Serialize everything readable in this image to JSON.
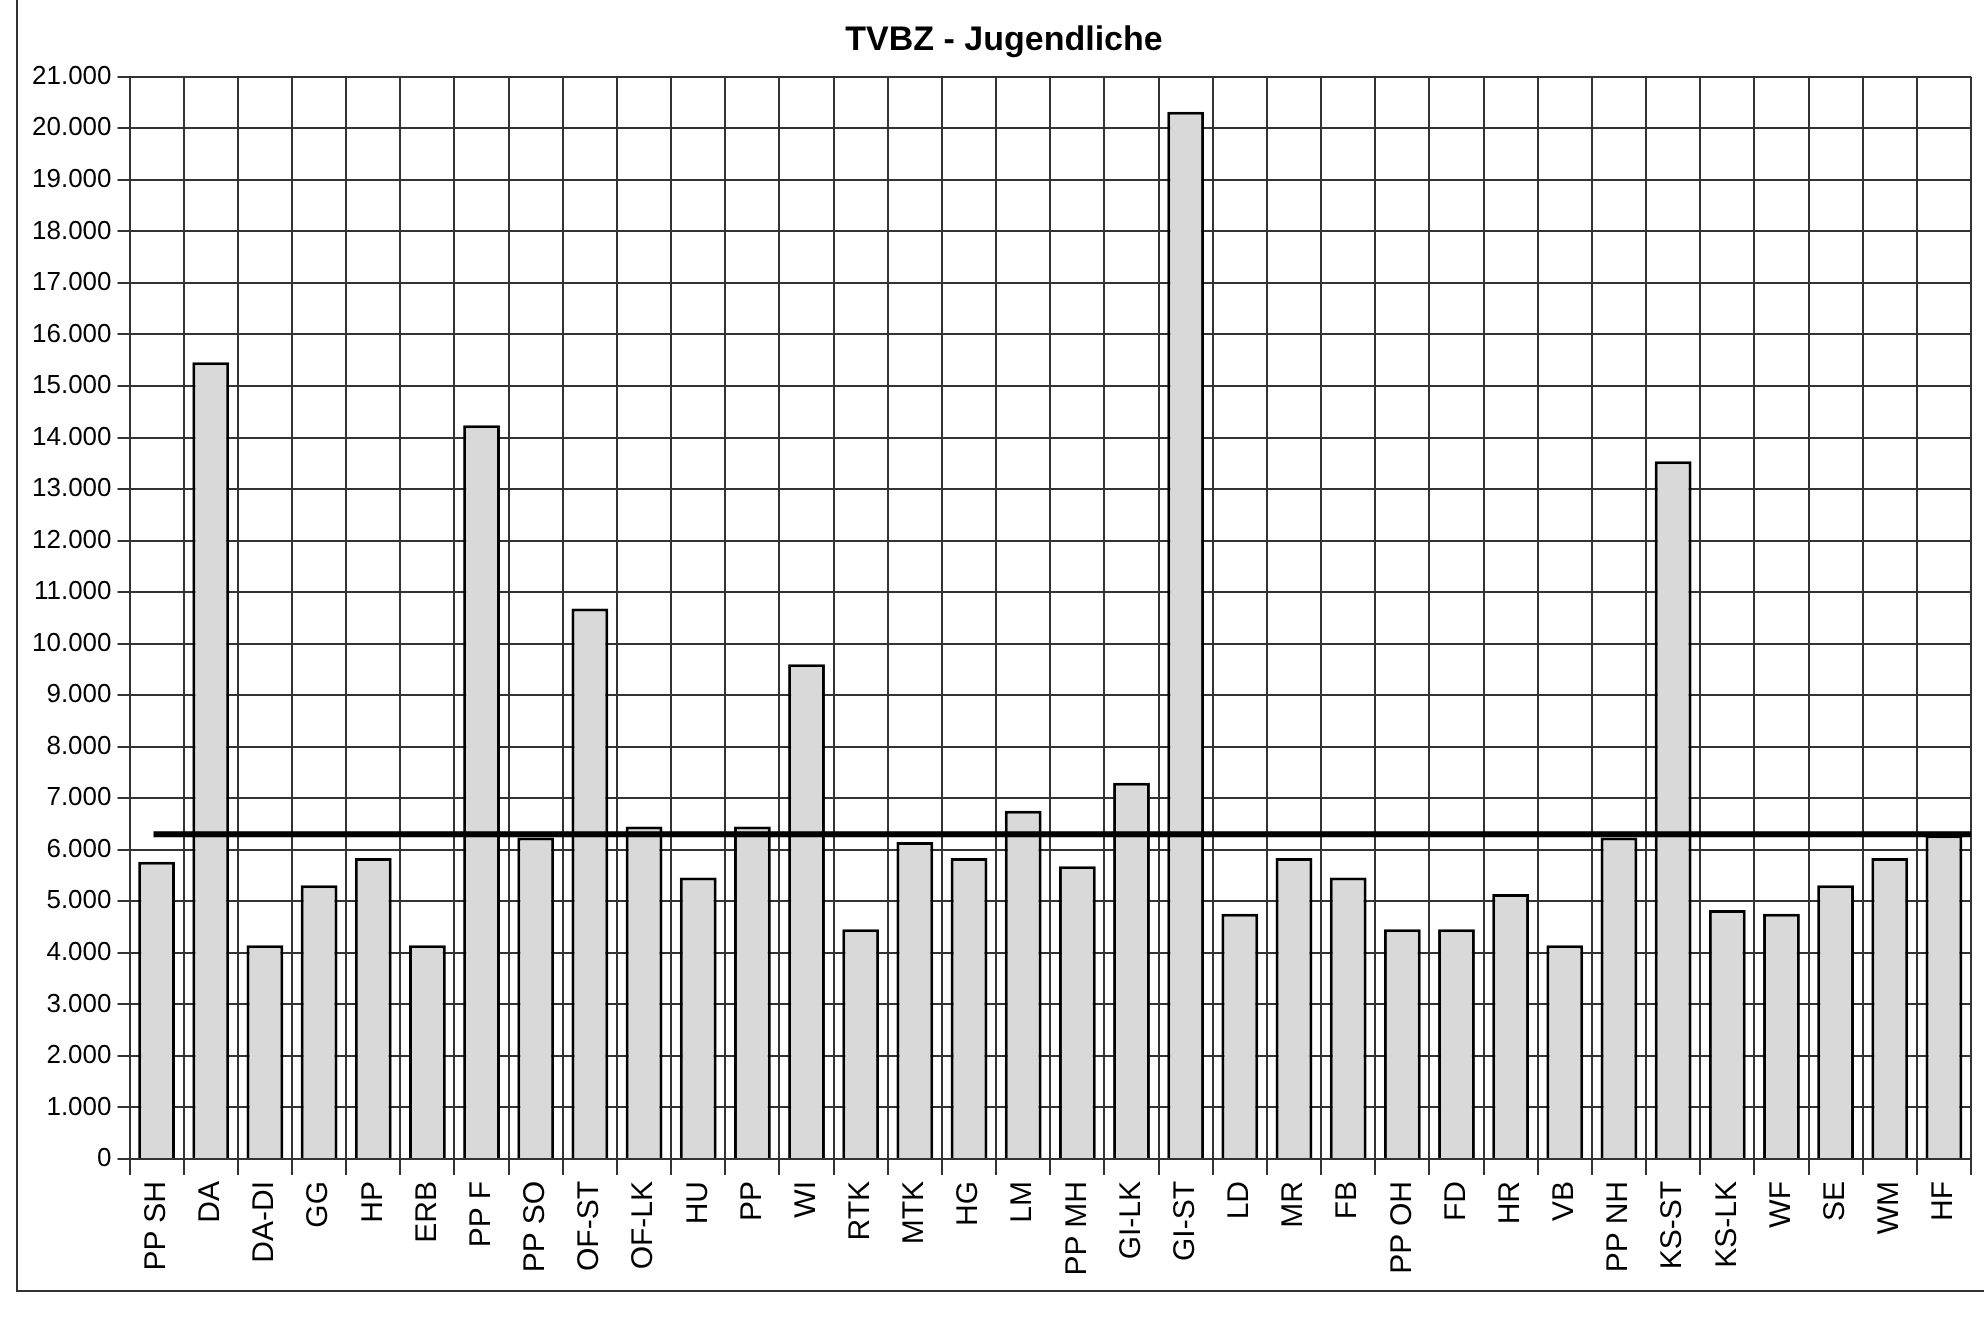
{
  "chart_data": {
    "type": "bar",
    "title": "TVBZ - Jugendliche",
    "categories": [
      "PP SH",
      "DA",
      "DA-DI",
      "GG",
      "HP",
      "ERB",
      "PP F",
      "PP SO",
      "OF-ST",
      "OF-LK",
      "HU",
      "PP",
      "WI",
      "RTK",
      "MTK",
      "HG",
      "LM",
      "PP MH",
      "GI-LK",
      "GI-ST",
      "LD",
      "MR",
      "FB",
      "PP OH",
      "FD",
      "HR",
      "VB",
      "PP NH",
      "KS-ST",
      "KS-LK",
      "WF",
      "SE",
      "WM",
      "HF"
    ],
    "values": [
      5770,
      15460,
      4150,
      5310,
      5840,
      4150,
      14240,
      6240,
      10680,
      6450,
      5460,
      6450,
      9600,
      4460,
      6150,
      5840,
      6760,
      5680,
      7300,
      20320,
      4760,
      5840,
      5460,
      4460,
      4460,
      5140,
      4150,
      6240,
      13540,
      4830,
      4760,
      5310,
      5840,
      6280
    ],
    "color": "#d9d9d9",
    "ylim": [
      0,
      21000
    ],
    "yticks": [
      0,
      {
        "value": 1000,
        "label": "1.000"
      },
      {
        "value": 2000,
        "label": "2.000"
      },
      {
        "value": 3000,
        "label": "3.000"
      },
      {
        "value": 4000,
        "label": "4.000"
      },
      {
        "value": 5000,
        "label": "5.000"
      },
      {
        "value": 6000,
        "label": "6.000"
      },
      {
        "value": 7000,
        "label": "7.000"
      },
      {
        "value": 8000,
        "label": "8.000"
      },
      {
        "value": 9000,
        "label": "9.000"
      },
      {
        "value": 10000,
        "label": "10.000"
      },
      {
        "value": 11000,
        "label": "11.000"
      },
      {
        "value": 12000,
        "label": "12.000"
      },
      {
        "value": 13000,
        "label": "13.000"
      },
      {
        "value": 14000,
        "label": "14.000"
      },
      {
        "value": 15000,
        "label": "15.000"
      },
      {
        "value": 16000,
        "label": "16.000"
      },
      {
        "value": 17000,
        "label": "17.000"
      },
      {
        "value": 18000,
        "label": "18.000"
      },
      {
        "value": 19000,
        "label": "19.000"
      },
      {
        "value": 20000,
        "label": "20.000"
      },
      {
        "value": 21000,
        "label": "21.000"
      }
    ],
    "grid": true,
    "ref_lines": [
      {
        "axis": "y",
        "value": 6300,
        "color": "#000000"
      }
    ]
  }
}
